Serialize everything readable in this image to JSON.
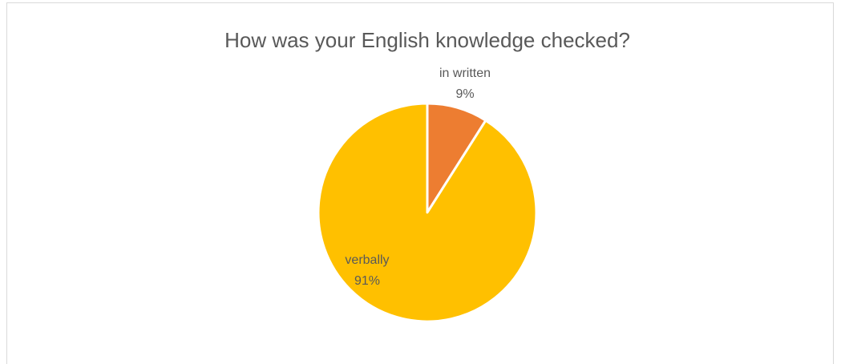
{
  "chart_data": {
    "type": "pie",
    "title": "How was your English knowledge checked?",
    "categories": [
      "in written",
      "verbally"
    ],
    "values": [
      9,
      91
    ],
    "value_labels": [
      "9%",
      "91%"
    ],
    "colors": [
      "#ED7D31",
      "#FFC000"
    ]
  }
}
